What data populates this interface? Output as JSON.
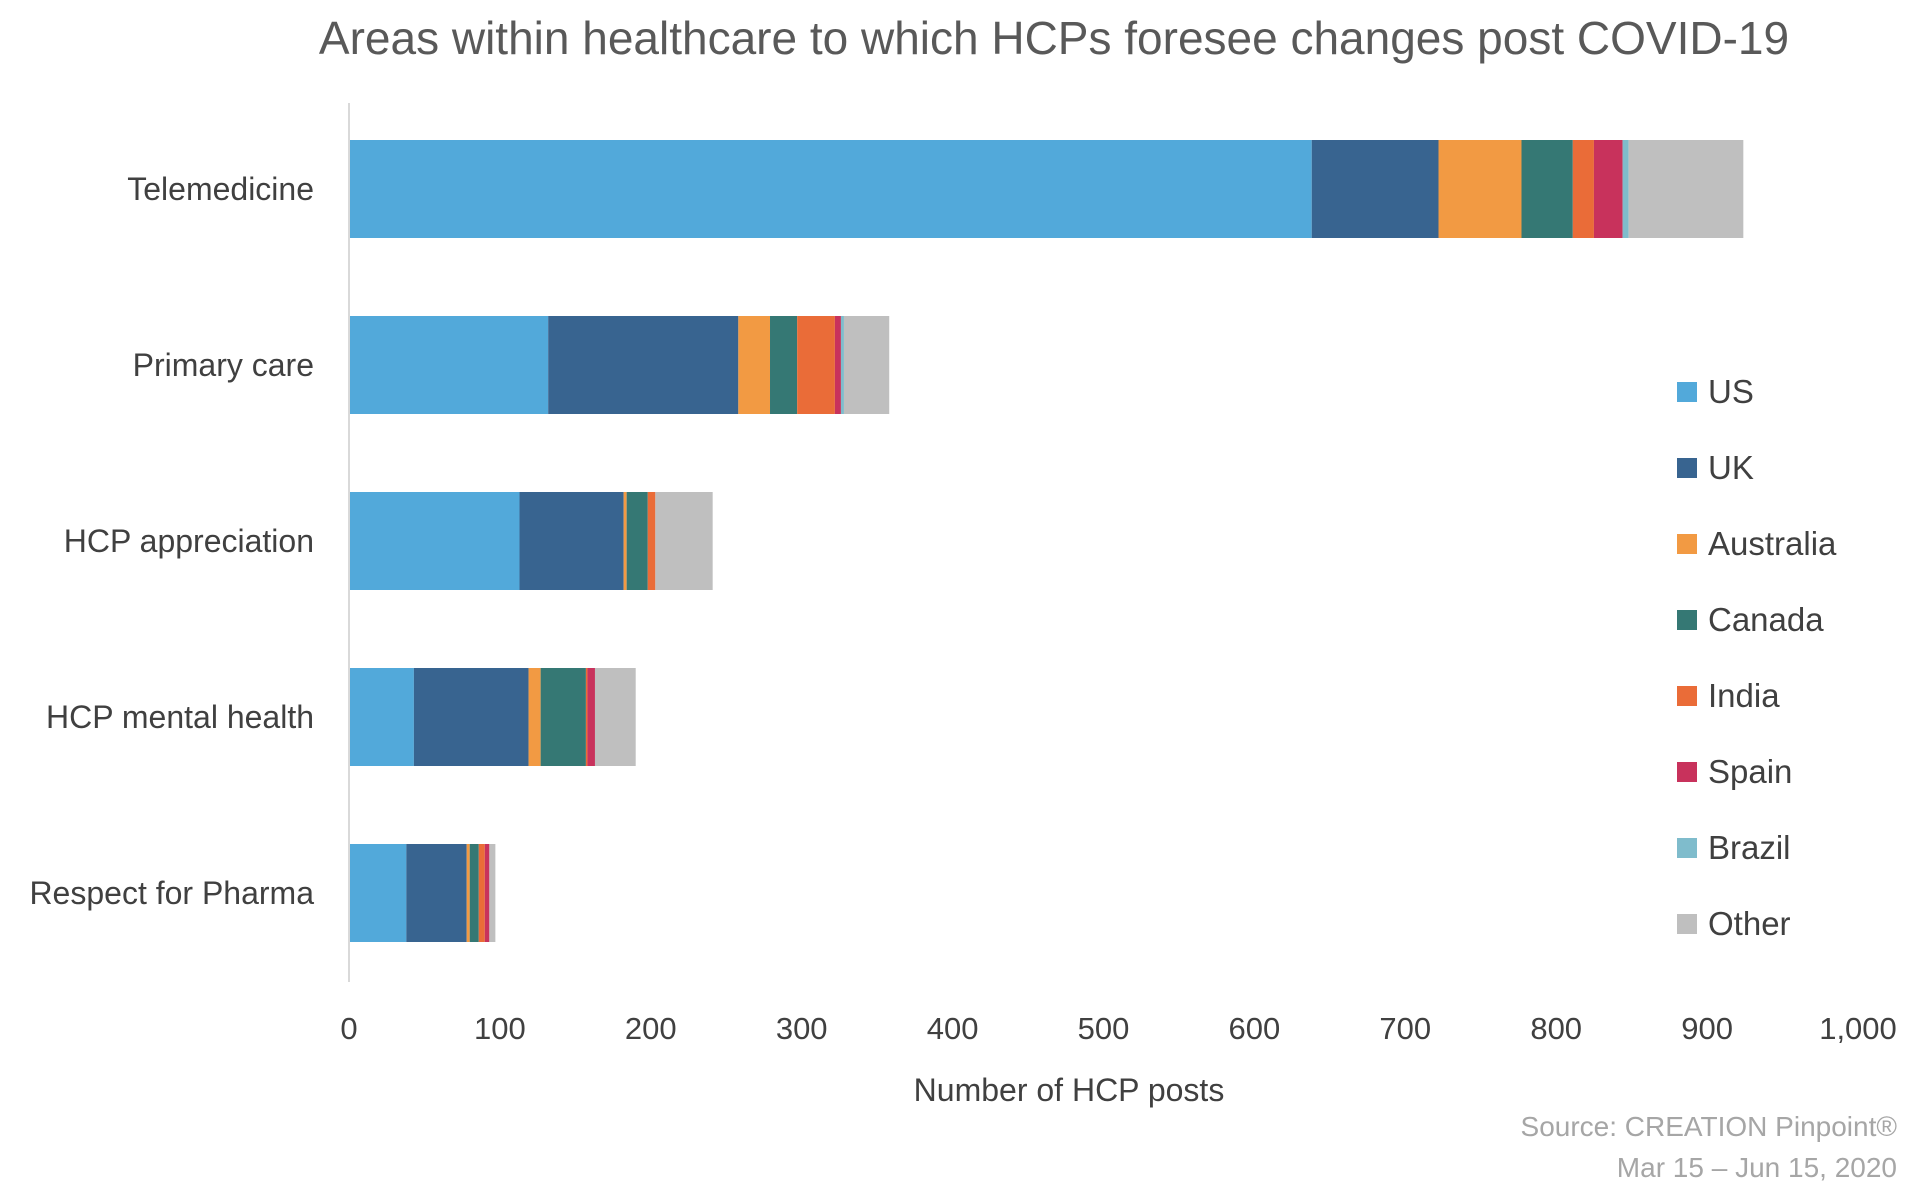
{
  "chart_data": {
    "type": "bar",
    "orientation": "horizontal",
    "stacked": true,
    "title": "Areas within healthcare to which HCPs foresee changes post COVID-19",
    "xlabel": "Number of HCP posts",
    "ylabel": "",
    "xlim": [
      0,
      1000
    ],
    "x_ticks": [
      0,
      100,
      200,
      300,
      400,
      500,
      600,
      700,
      800,
      900,
      1000
    ],
    "x_tick_labels": [
      "0",
      "100",
      "200",
      "300",
      "400",
      "500",
      "600",
      "700",
      "800",
      "900",
      "1,000"
    ],
    "categories": [
      "Telemedicine",
      "Primary care",
      "HCP appreciation",
      "HCP mental health",
      "Respect for Pharma"
    ],
    "series": [
      {
        "name": "US",
        "color": "#52A9DA",
        "values": [
          638,
          132,
          113,
          43,
          38
        ]
      },
      {
        "name": "UK",
        "color": "#386490",
        "values": [
          84,
          126,
          69,
          76,
          40
        ]
      },
      {
        "name": "Australia",
        "color": "#F29A43",
        "values": [
          55,
          21,
          2,
          8,
          2
        ]
      },
      {
        "name": "Canada",
        "color": "#357874",
        "values": [
          34,
          18,
          14,
          30,
          6
        ]
      },
      {
        "name": "India",
        "color": "#EA6C38",
        "values": [
          14,
          25,
          5,
          1,
          4
        ]
      },
      {
        "name": "Spain",
        "color": "#C8325C",
        "values": [
          19,
          4,
          0,
          5,
          3
        ]
      },
      {
        "name": "Brazil",
        "color": "#7FBCCC",
        "values": [
          4,
          2,
          0,
          0,
          0
        ]
      },
      {
        "name": "Other",
        "color": "#BFBFBF",
        "values": [
          76,
          30,
          38,
          27,
          4
        ]
      }
    ],
    "grid": false,
    "legend_position": "right"
  },
  "source": {
    "line1": "Source: CREATION Pinpoint®",
    "line2": "Mar 15 – Jun 15, 2020"
  }
}
